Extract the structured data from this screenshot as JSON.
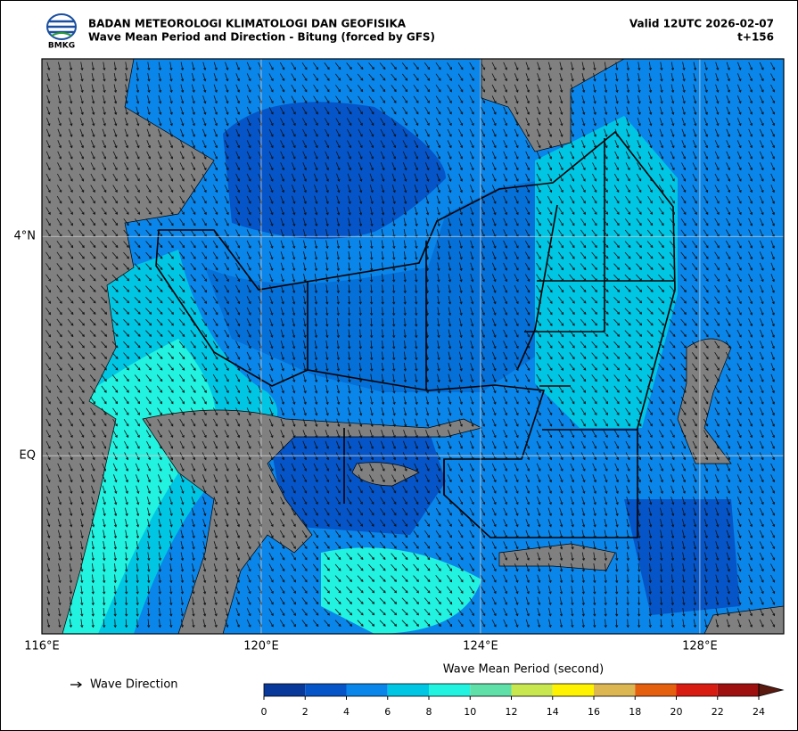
{
  "header": {
    "logo": "BMKG",
    "agency": "BADAN METEOROLOGI KLIMATOLOGI DAN GEOFISIKA",
    "title": "Wave Mean Period and Direction - Bitung (forced by GFS)",
    "valid": "Valid 12UTC 2026-02-07",
    "lead": "t+156"
  },
  "map": {
    "lonlim": [
      116,
      129.53
    ],
    "latlim": [
      -3.25,
      7.24
    ],
    "xticks": [
      {
        "value": 116,
        "label": "116°E"
      },
      {
        "value": 120,
        "label": "120°E"
      },
      {
        "value": 124,
        "label": "124°E"
      },
      {
        "value": 128,
        "label": "128°E"
      }
    ],
    "yticks": [
      {
        "value": 0,
        "label": "EQ"
      },
      {
        "value": 4,
        "label": "4°N"
      }
    ]
  },
  "legend": {
    "label": "Wave Direction"
  },
  "colorbar": {
    "title": "Wave Mean Period (second)",
    "clim": [
      0,
      24
    ],
    "ticks": [
      0,
      2,
      4,
      6,
      8,
      10,
      12,
      14,
      16,
      18,
      20,
      22,
      24
    ],
    "colors": [
      "#08399a",
      "#0555c8",
      "#0a86ea",
      "#00c6e4",
      "#22f2e0",
      "#5ee0a8",
      "#c8e64e",
      "#fff200",
      "#dcb650",
      "#e4600e",
      "#d81c12",
      "#9e1010"
    ],
    "extend_color": "#5a1a10"
  }
}
